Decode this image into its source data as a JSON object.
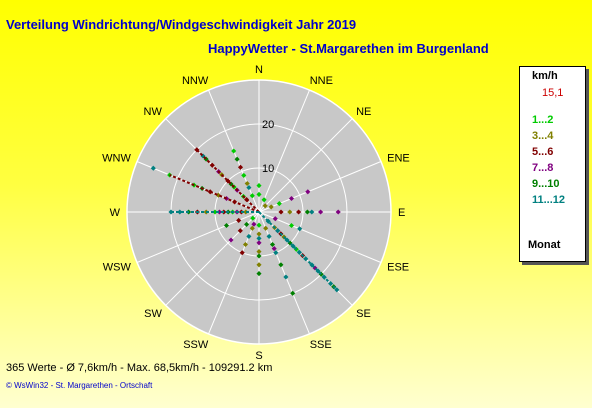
{
  "title": "Verteilung Windrichtung/Windgeschwindigkeit  Jahr 2019",
  "subtitle": "HappyWetter - St.Margarethen im Burgenland",
  "chart_data": {
    "type": "scatter",
    "subtype": "polar-wind-rose",
    "directions": [
      "N",
      "NNE",
      "NE",
      "ENE",
      "E",
      "ESE",
      "SE",
      "SSE",
      "S",
      "SSW",
      "SW",
      "WSW",
      "W",
      "WNW",
      "NW",
      "NNW"
    ],
    "radial_ticks": [
      10,
      20
    ],
    "radial_max": 30,
    "grid": true,
    "legend_position": "right",
    "series": [
      {
        "name": "1...2",
        "color": "#00cc00",
        "points": [
          [
            0,
            4
          ],
          [
            0,
            6
          ],
          [
            1,
            3
          ],
          [
            3,
            5
          ],
          [
            5,
            8
          ],
          [
            14,
            5
          ],
          [
            14,
            8
          ],
          [
            15,
            4
          ],
          [
            15,
            9
          ],
          [
            15,
            15
          ],
          [
            8,
            3
          ],
          [
            10,
            2
          ],
          [
            12,
            6
          ],
          [
            12,
            10
          ],
          [
            13,
            16
          ],
          [
            13,
            22
          ],
          [
            6,
            12
          ]
        ]
      },
      {
        "name": "3...4",
        "color": "#808000",
        "points": [
          [
            8,
            5
          ],
          [
            8,
            9
          ],
          [
            8,
            12
          ],
          [
            7,
            4
          ],
          [
            6,
            5
          ],
          [
            6,
            8
          ],
          [
            12,
            3
          ],
          [
            12,
            12
          ],
          [
            13,
            10
          ],
          [
            14,
            12
          ],
          [
            15,
            7
          ],
          [
            4,
            7
          ],
          [
            3,
            3
          ],
          [
            2,
            2
          ],
          [
            9,
            4
          ],
          [
            9,
            8
          ]
        ]
      },
      {
        "name": "5...6",
        "color": "#800000",
        "points": [
          [
            14,
            4
          ],
          [
            14,
            10
          ],
          [
            14,
            15
          ],
          [
            14,
            20
          ],
          [
            13,
            6
          ],
          [
            13,
            12
          ],
          [
            12,
            4
          ],
          [
            12,
            8
          ],
          [
            12,
            14
          ],
          [
            6,
            7
          ],
          [
            6,
            14
          ],
          [
            4,
            5
          ],
          [
            4,
            9
          ],
          [
            15,
            11
          ],
          [
            11,
            5
          ],
          [
            10,
            6
          ],
          [
            9,
            10
          ]
        ]
      },
      {
        "name": "7...8",
        "color": "#800080",
        "points": [
          [
            3,
            12
          ],
          [
            4,
            14
          ],
          [
            4,
            18
          ],
          [
            6,
            6
          ],
          [
            6,
            18
          ],
          [
            12,
            5
          ],
          [
            12,
            9
          ],
          [
            13,
            8
          ],
          [
            14,
            7
          ],
          [
            14,
            13
          ],
          [
            9,
            3
          ],
          [
            8,
            7
          ],
          [
            5,
            4
          ],
          [
            3,
            8
          ],
          [
            7,
            9
          ],
          [
            10,
            9
          ]
        ]
      },
      {
        "name": "9...10",
        "color": "#008000",
        "points": [
          [
            6,
            10
          ],
          [
            6,
            20
          ],
          [
            6,
            24
          ],
          [
            7,
            8
          ],
          [
            7,
            13
          ],
          [
            7,
            20
          ],
          [
            8,
            10
          ],
          [
            8,
            14
          ],
          [
            13,
            14
          ],
          [
            14,
            9
          ],
          [
            14,
            17
          ],
          [
            12,
            7
          ],
          [
            12,
            16
          ],
          [
            15,
            13
          ],
          [
            10,
            4
          ],
          [
            11,
            8
          ],
          [
            4,
            11
          ]
        ]
      },
      {
        "name": "11...12",
        "color": "#008080",
        "points": [
          [
            6,
            3
          ],
          [
            6,
            6
          ],
          [
            6,
            9
          ],
          [
            6,
            11
          ],
          [
            6,
            13
          ],
          [
            6,
            15
          ],
          [
            6,
            17
          ],
          [
            6,
            19
          ],
          [
            6,
            21
          ],
          [
            6,
            23
          ],
          [
            6,
            25
          ],
          [
            7,
            6
          ],
          [
            7,
            10
          ],
          [
            7,
            16
          ],
          [
            12,
            18
          ],
          [
            12,
            20
          ],
          [
            13,
            26
          ],
          [
            14,
            18
          ],
          [
            15,
            6
          ],
          [
            8,
            6
          ],
          [
            5,
            10
          ],
          [
            4,
            12
          ],
          [
            9,
            6
          ]
        ]
      }
    ],
    "max_series": {
      "name": "15,1",
      "color": "#cc0000"
    }
  },
  "legend": {
    "unit": "km/h",
    "max_value": "15,1",
    "items": [
      {
        "label": "1...2",
        "color": "#00cc00"
      },
      {
        "label": "3...4",
        "color": "#808000"
      },
      {
        "label": "5...6",
        "color": "#800000"
      },
      {
        "label": "7...8",
        "color": "#800080"
      },
      {
        "label": "9...10",
        "color": "#008000"
      },
      {
        "label": "11...12",
        "color": "#008080"
      }
    ],
    "footer": "Monat"
  },
  "footer": "365 Werte   -   Ø 7,6km/h  -  Max. 68,5km/h  -   109291.2 km",
  "copyright": "© WsWin32  -  St. Margarethen - Ortschaft"
}
